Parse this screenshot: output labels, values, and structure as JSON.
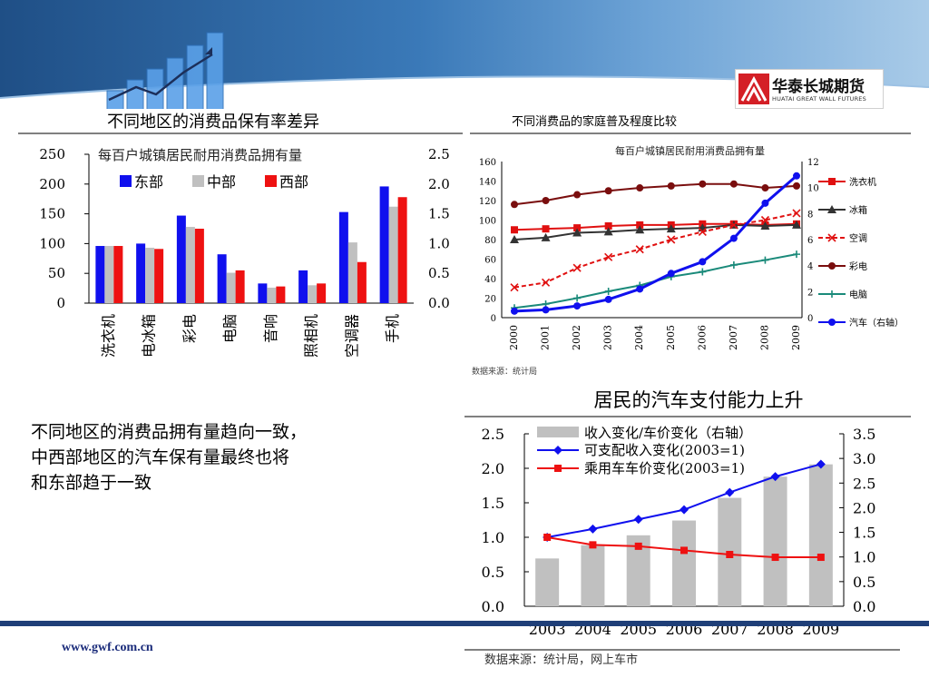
{
  "slide": {
    "website": "www.gwf.com.cn",
    "body_text_lines": [
      "不同地区的消费品拥有量趋向一致，",
      "中西部地区的汽车保有量最终也将",
      "和东部趋于一致"
    ]
  },
  "logo": {
    "name_cn": "华泰长城期货",
    "name_en": "HUATAI GREAT WALL FUTURES"
  },
  "colors": {
    "header_dark": "#1f4f86",
    "footer_bar": "#1f3f78",
    "east": "#1010ee",
    "central": "#c0c0c0",
    "west": "#ee1111"
  },
  "chart_data": [
    {
      "type": "bar",
      "title": "不同地区的消费品保有率差异",
      "subtitle": "每百户城镇居民耐用消费品拥有量",
      "categories": [
        "洗衣机",
        "电冰箱",
        "彩电",
        "电脑",
        "音响",
        "照相机",
        "空调器",
        "手机"
      ],
      "series": [
        {
          "name": "东部",
          "color": "#1010ee",
          "values": [
            96,
            100,
            147,
            82,
            33,
            55,
            153,
            196
          ]
        },
        {
          "name": "中部",
          "color": "#c0c0c0",
          "values": [
            96,
            93,
            128,
            51,
            26,
            30,
            102,
            162
          ]
        },
        {
          "name": "西部",
          "color": "#ee1111",
          "values": [
            96,
            91,
            125,
            55,
            28,
            33,
            69,
            178
          ]
        }
      ],
      "y_left": {
        "min": 0,
        "max": 250,
        "ticks": [
          "0",
          "50",
          "100",
          "150",
          "200",
          "250"
        ]
      },
      "y_right": {
        "min": 0,
        "max": 2.5,
        "ticks": [
          "0.0",
          "0.5",
          "1.0",
          "1.5",
          "2.0",
          "2.5"
        ]
      },
      "legend": "top"
    },
    {
      "type": "line",
      "title": "不同消费品的家庭普及程度比较",
      "subtitle": "每百户城镇居民耐用消费品拥有量",
      "x": [
        "2000",
        "2001",
        "2002",
        "2003",
        "2004",
        "2005",
        "2006",
        "2007",
        "2008",
        "2009"
      ],
      "series": [
        {
          "name": "洗衣机",
          "color": "#e01010",
          "axis": "left",
          "values": [
            90,
            91,
            92,
            94,
            95,
            95,
            96,
            96,
            95,
            96
          ]
        },
        {
          "name": "冰箱",
          "color": "#333333",
          "axis": "left",
          "values": [
            80,
            82,
            87,
            88,
            90,
            91,
            92,
            95,
            94,
            95
          ]
        },
        {
          "name": "空调",
          "color": "#e01010",
          "axis": "left",
          "dashed": true,
          "values": [
            31,
            36,
            51,
            62,
            70,
            80,
            88,
            95,
            100,
            107
          ]
        },
        {
          "name": "彩电",
          "color": "#7a0e0e",
          "axis": "left",
          "values": [
            116,
            120,
            126,
            130,
            133,
            135,
            137,
            137,
            133,
            135
          ]
        },
        {
          "name": "电脑",
          "color": "#1a8a7a",
          "axis": "left",
          "values": [
            10,
            14,
            20,
            27,
            33,
            42,
            47,
            54,
            59,
            65
          ]
        },
        {
          "name": "汽车（右轴）",
          "color": "#1010ee",
          "axis": "right",
          "values": [
            0.5,
            0.6,
            0.9,
            1.4,
            2.2,
            3.4,
            4.3,
            6.1,
            8.8,
            10.9
          ]
        }
      ],
      "y_left": {
        "min": 0,
        "max": 160,
        "ticks": [
          "0",
          "20",
          "40",
          "60",
          "80",
          "100",
          "120",
          "140",
          "160"
        ]
      },
      "y_right": {
        "min": 0,
        "max": 12,
        "ticks": [
          "0",
          "2",
          "4",
          "6",
          "8",
          "10",
          "12"
        ]
      },
      "source": "数据来源：统计局",
      "legend": "right"
    },
    {
      "type": "bar+line",
      "title": "居民的汽车支付能力上升",
      "x": [
        "2003",
        "2004",
        "2005",
        "2006",
        "2007",
        "2008",
        "2009"
      ],
      "series": [
        {
          "name": "收入变化/车价变化（右轴）",
          "type": "bar",
          "axis": "right",
          "color": "#c0c0c0",
          "values": [
            0.97,
            1.24,
            1.44,
            1.74,
            2.2,
            2.63,
            2.88
          ]
        },
        {
          "name": "可支配收入变化(2003=1)",
          "type": "line",
          "axis": "left",
          "color": "#1010ee",
          "values": [
            1.0,
            1.12,
            1.26,
            1.4,
            1.65,
            1.88,
            2.06
          ]
        },
        {
          "name": "乘用车车价变化(2003=1)",
          "type": "line",
          "axis": "left",
          "color": "#ee1111",
          "values": [
            1.0,
            0.89,
            0.87,
            0.81,
            0.75,
            0.71,
            0.71
          ]
        }
      ],
      "legend_labels": [
        "收入变化/车价变化（右轴）",
        "可支配收入变化(2003=1)",
        "乘用车车价变化(2003=1)"
      ],
      "y_left": {
        "min": 0,
        "max": 2.5,
        "ticks": [
          "0.0",
          "0.5",
          "1.0",
          "1.5",
          "2.0",
          "2.5"
        ]
      },
      "y_right": {
        "min": 0,
        "max": 3.5,
        "ticks": [
          "0.0",
          "0.5",
          "1.0",
          "1.5",
          "2.0",
          "2.5",
          "3.0",
          "3.5"
        ]
      },
      "source": "数据来源：统计局，网上车市",
      "legend": "top-left"
    }
  ]
}
